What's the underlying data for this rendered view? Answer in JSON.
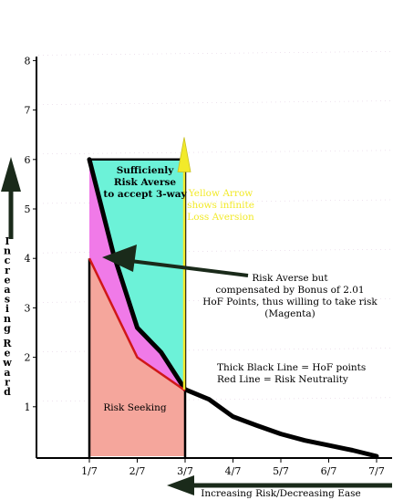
{
  "chart_data": {
    "type": "line",
    "xlim": [
      0.5,
      7.5
    ],
    "ylim": [
      0,
      8.2
    ],
    "x_ticks": [
      {
        "x": 1,
        "label": "1/7"
      },
      {
        "x": 2,
        "label": "2/7"
      },
      {
        "x": 3,
        "label": "3/7"
      },
      {
        "x": 4,
        "label": "4/7"
      },
      {
        "x": 5,
        "label": "5/7"
      },
      {
        "x": 6,
        "label": "6/7"
      },
      {
        "x": 7,
        "label": "7/7"
      }
    ],
    "y_ticks": [
      {
        "y": 1,
        "label": "1"
      },
      {
        "y": 2,
        "label": "2"
      },
      {
        "y": 3,
        "label": "3"
      },
      {
        "y": 4,
        "label": "4"
      },
      {
        "y": 5,
        "label": "5"
      },
      {
        "y": 6,
        "label": "6"
      },
      {
        "y": 7,
        "label": "7"
      },
      {
        "y": 8,
        "label": "8"
      }
    ],
    "series": [
      {
        "name": "HoF points",
        "color": "#000000",
        "points": [
          [
            1,
            6
          ],
          [
            1.5,
            4.1
          ],
          [
            2,
            2.6
          ],
          [
            2.5,
            2.1
          ],
          [
            3,
            1.35
          ],
          [
            3.5,
            1.15
          ],
          [
            4,
            0.8
          ],
          [
            4.5,
            0.62
          ],
          [
            5,
            0.45
          ],
          [
            5.5,
            0.32
          ],
          [
            6,
            0.22
          ],
          [
            6.5,
            0.12
          ],
          [
            7,
            0
          ]
        ]
      },
      {
        "name": "Risk Neutrality",
        "color": "#d01818",
        "points": [
          [
            1,
            4
          ],
          [
            2,
            2
          ],
          [
            3,
            1.33
          ]
        ]
      }
    ],
    "regions": [
      {
        "label": "Risk Seeking",
        "color": "#f5a69c"
      },
      {
        "label": "Magenta",
        "color": "#f07ae8"
      },
      {
        "label": "Sufficienly Risk Averse to accept 3-way",
        "color": "#6cf2d8"
      }
    ],
    "annotations": {
      "cyan_line1": "Sufficienly",
      "cyan_line2": "Risk Averse",
      "cyan_line3": "to accept 3-way",
      "yellow_line1": "Yellow Arrow",
      "yellow_line2": "shows infinite",
      "yellow_line3": "Loss Aversion",
      "averse_line1": "Risk Averse but",
      "averse_line2": "compensated by Bonus of 2.01",
      "averse_line3": "HoF Points, thus willing to take risk",
      "averse_line4": "(Magenta)",
      "legend_line1": "Thick Black Line  = HoF points",
      "legend_line2": "Red Line = Risk Neutrality",
      "risk_seeking": "Risk Seeking"
    },
    "ylabel": "Increasing Reward",
    "xlabel": "Increasing Risk/Decreasing Ease",
    "colors": {
      "yellow": "#f2ea2a",
      "arrow": "#1a2a1a"
    }
  }
}
